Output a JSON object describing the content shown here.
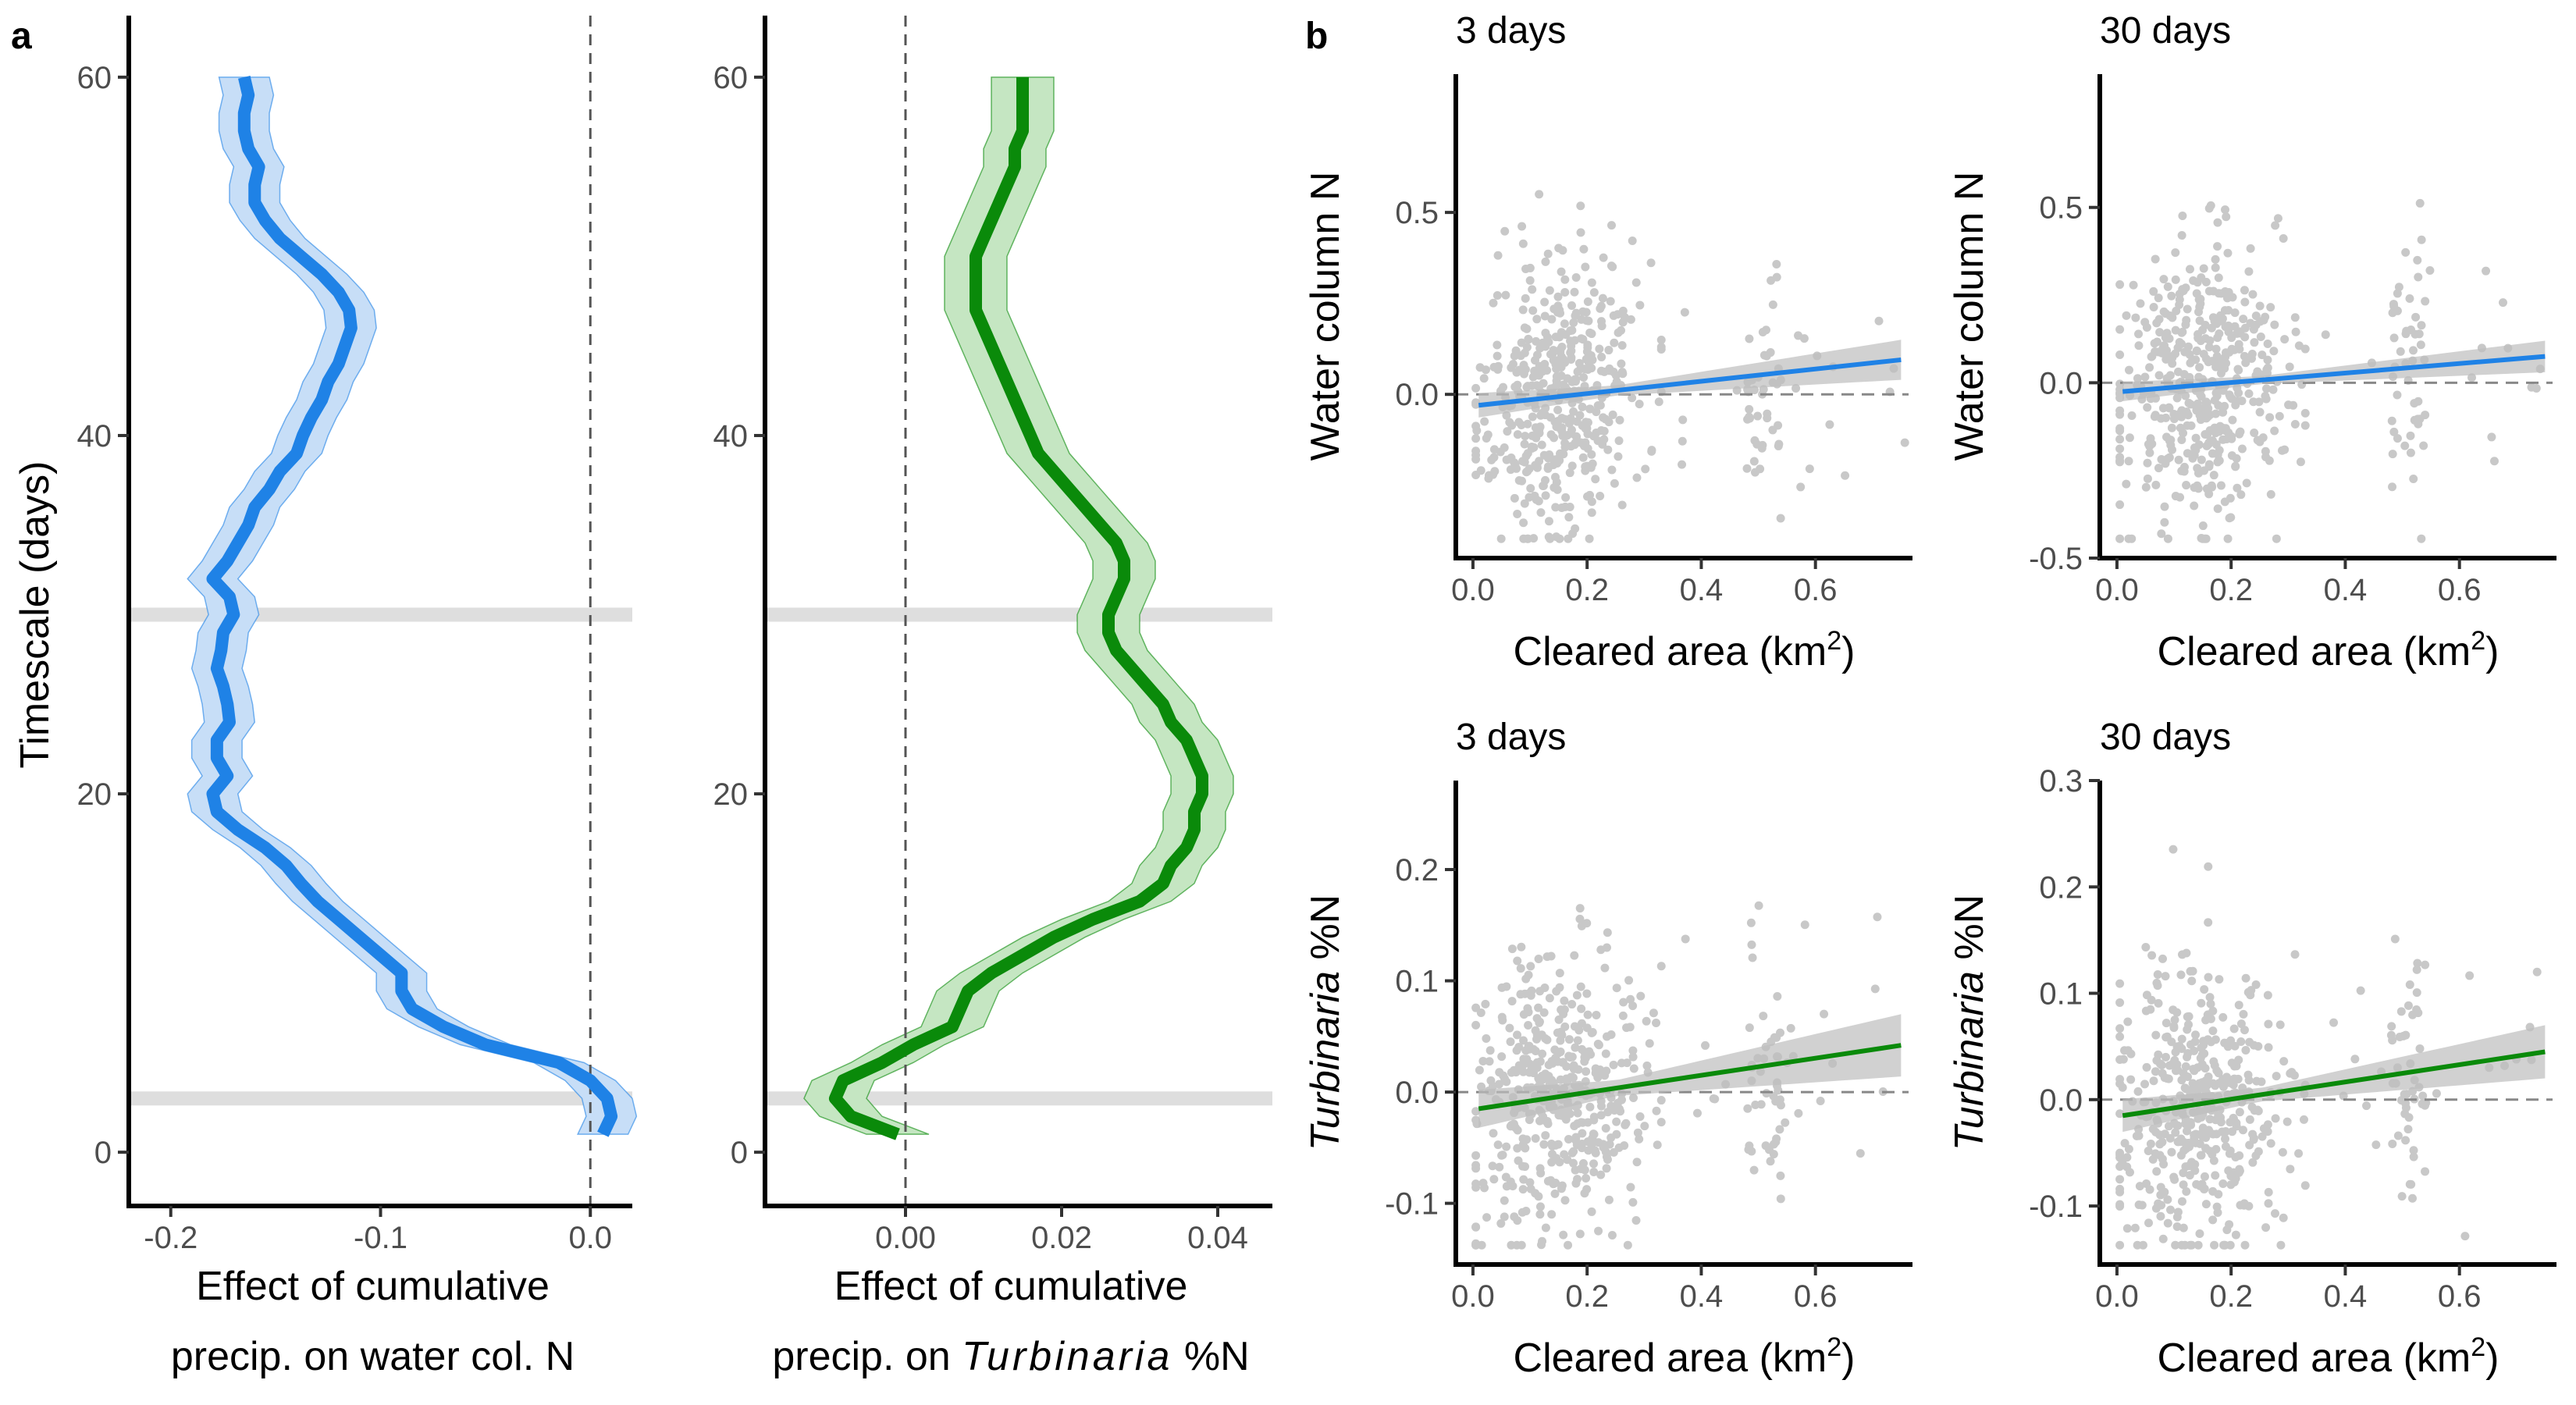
{
  "panel_labels": {
    "a": "a",
    "b": "b"
  },
  "chart_data": [
    {
      "type": "line",
      "orientation": "horizontal-effect",
      "ylabel": "Timescale (days)",
      "xlabel_line1": "Effect of cumulative",
      "xlabel_line2": "precip. on water col. N",
      "xlim": [
        -0.22,
        0.02
      ],
      "ylim": [
        -3,
        63
      ],
      "xticks": [
        {
          "v": -0.2,
          "label": "-0.2"
        },
        {
          "v": -0.1,
          "label": "-0.1"
        },
        {
          "v": 0.0,
          "label": "0.0"
        }
      ],
      "yticks": [
        {
          "v": 0,
          "label": "0"
        },
        {
          "v": 20,
          "label": "20"
        },
        {
          "v": 40,
          "label": "40"
        },
        {
          "v": 60,
          "label": "60"
        }
      ],
      "highlight_days": [
        3,
        30
      ],
      "zero_line": 0,
      "color": "#1f82e6",
      "band_color": "#c7def7",
      "days": [
        1,
        2,
        3,
        4,
        5,
        6,
        7,
        8,
        9,
        10,
        11,
        12,
        13,
        14,
        15,
        16,
        17,
        18,
        19,
        20,
        21,
        22,
        23,
        24,
        25,
        26,
        27,
        28,
        29,
        30,
        31,
        32,
        33,
        34,
        35,
        36,
        37,
        38,
        39,
        40,
        41,
        42,
        43,
        44,
        45,
        46,
        47,
        48,
        49,
        50,
        51,
        52,
        53,
        54,
        55,
        56,
        57,
        58,
        59,
        60
      ],
      "effect": [
        0.006,
        0.01,
        0.008,
        0.0,
        -0.015,
        -0.05,
        -0.07,
        -0.085,
        -0.09,
        -0.09,
        -0.1,
        -0.11,
        -0.12,
        -0.13,
        -0.138,
        -0.145,
        -0.155,
        -0.168,
        -0.178,
        -0.18,
        -0.173,
        -0.178,
        -0.178,
        -0.172,
        -0.173,
        -0.175,
        -0.178,
        -0.176,
        -0.175,
        -0.17,
        -0.172,
        -0.18,
        -0.173,
        -0.168,
        -0.163,
        -0.16,
        -0.153,
        -0.148,
        -0.14,
        -0.137,
        -0.133,
        -0.128,
        -0.125,
        -0.12,
        -0.117,
        -0.114,
        -0.115,
        -0.12,
        -0.128,
        -0.138,
        -0.148,
        -0.155,
        -0.16,
        -0.16,
        -0.158,
        -0.163,
        -0.165,
        -0.165,
        -0.163,
        -0.165
      ],
      "half_width": 0.012
    },
    {
      "type": "line",
      "orientation": "horizontal-effect",
      "ylabel": "",
      "xlabel_line1": "Effect of cumulative",
      "xlabel_line2_pre": "precip. on ",
      "xlabel_line2_italic": "Turbinaria",
      "xlabel_line2_post": " %N",
      "xlim": [
        -0.018,
        0.047
      ],
      "ylim": [
        -3,
        63
      ],
      "xticks": [
        {
          "v": 0.0,
          "label": "0.00"
        },
        {
          "v": 0.02,
          "label": "0.02"
        },
        {
          "v": 0.04,
          "label": "0.04"
        }
      ],
      "yticks": [
        {
          "v": 0,
          "label": "0"
        },
        {
          "v": 20,
          "label": "20"
        },
        {
          "v": 40,
          "label": "40"
        },
        {
          "v": 60,
          "label": "60"
        }
      ],
      "highlight_days": [
        3,
        30
      ],
      "zero_line": 0,
      "color": "#0a8a0a",
      "band_color": "#c5e6c2",
      "days": [
        1,
        2,
        3,
        4,
        5,
        6,
        7,
        8,
        9,
        10,
        11,
        12,
        13,
        14,
        15,
        16,
        17,
        18,
        19,
        20,
        21,
        22,
        23,
        24,
        25,
        26,
        27,
        28,
        29,
        30,
        31,
        32,
        33,
        34,
        35,
        36,
        37,
        38,
        39,
        40,
        41,
        42,
        43,
        44,
        45,
        46,
        47,
        48,
        49,
        50,
        51,
        52,
        53,
        54,
        55,
        56,
        57,
        58,
        59,
        60
      ],
      "effect": [
        -0.001,
        -0.007,
        -0.009,
        -0.008,
        -0.003,
        0.001,
        0.006,
        0.007,
        0.008,
        0.011,
        0.015,
        0.019,
        0.024,
        0.03,
        0.033,
        0.034,
        0.036,
        0.037,
        0.037,
        0.038,
        0.038,
        0.037,
        0.036,
        0.034,
        0.033,
        0.031,
        0.029,
        0.027,
        0.026,
        0.026,
        0.027,
        0.028,
        0.028,
        0.027,
        0.025,
        0.023,
        0.021,
        0.019,
        0.017,
        0.016,
        0.015,
        0.014,
        0.013,
        0.012,
        0.011,
        0.01,
        0.009,
        0.009,
        0.009,
        0.009,
        0.01,
        0.011,
        0.012,
        0.013,
        0.014,
        0.014,
        0.015,
        0.015,
        0.015,
        0.015
      ],
      "half_width": 0.004
    },
    {
      "type": "scatter",
      "title": "3 days",
      "ylabel": "Water column N",
      "xlabel_text": "Cleared area (km",
      "xlabel_sup": "2",
      "xlabel_close": ")",
      "xlim": [
        -0.03,
        0.77
      ],
      "ylim": [
        -0.45,
        0.88
      ],
      "xticks": [
        {
          "v": 0.0,
          "label": "0.0"
        },
        {
          "v": 0.2,
          "label": "0.2"
        },
        {
          "v": 0.4,
          "label": "0.4"
        },
        {
          "v": 0.6,
          "label": "0.6"
        }
      ],
      "yticks": [
        {
          "v": 0.0,
          "label": "0.0"
        },
        {
          "v": 0.5,
          "label": "0.5"
        }
      ],
      "fit": {
        "x": [
          0.01,
          0.75
        ],
        "y": [
          -0.03,
          0.095
        ],
        "se_at_end": 0.055
      },
      "line_color": "#1f82e6",
      "n_points": 520,
      "seed": 11
    },
    {
      "type": "scatter",
      "title": "30 days",
      "ylabel": "Water column N",
      "xlabel_text": "Cleared area (km",
      "xlabel_sup": "2",
      "xlabel_close": ")",
      "xlim": [
        -0.03,
        0.77
      ],
      "ylim": [
        -0.5,
        0.88
      ],
      "xticks": [
        {
          "v": 0.0,
          "label": "0.0"
        },
        {
          "v": 0.2,
          "label": "0.2"
        },
        {
          "v": 0.4,
          "label": "0.4"
        },
        {
          "v": 0.6,
          "label": "0.6"
        }
      ],
      "yticks": [
        {
          "v": -0.5,
          "label": "-0.5"
        },
        {
          "v": 0.0,
          "label": "0.0"
        },
        {
          "v": 0.5,
          "label": "0.5"
        }
      ],
      "fit": {
        "x": [
          0.01,
          0.75
        ],
        "y": [
          -0.025,
          0.075
        ],
        "se_at_end": 0.045
      },
      "line_color": "#1f82e6",
      "n_points": 520,
      "seed": 23
    },
    {
      "type": "scatter",
      "title": "3 days",
      "ylabel_italic": "Turbinaria",
      "ylabel_post": " %N",
      "xlabel_text": "Cleared area (km",
      "xlabel_sup": "2",
      "xlabel_close": ")",
      "xlim": [
        -0.03,
        0.77
      ],
      "ylim": [
        -0.155,
        0.28
      ],
      "xticks": [
        {
          "v": 0.0,
          "label": "0.0"
        },
        {
          "v": 0.2,
          "label": "0.2"
        },
        {
          "v": 0.4,
          "label": "0.4"
        },
        {
          "v": 0.6,
          "label": "0.6"
        }
      ],
      "yticks": [
        {
          "v": -0.1,
          "label": "-0.1"
        },
        {
          "v": 0.0,
          "label": "0.0"
        },
        {
          "v": 0.1,
          "label": "0.1"
        },
        {
          "v": 0.2,
          "label": "0.2"
        }
      ],
      "fit": {
        "x": [
          0.01,
          0.75
        ],
        "y": [
          -0.015,
          0.042
        ],
        "se_at_end": 0.028
      },
      "line_color": "#0a8a0a",
      "n_points": 520,
      "seed": 37
    },
    {
      "type": "scatter",
      "title": "30 days",
      "ylabel_italic": "Turbinaria",
      "ylabel_post": " %N",
      "xlabel_text": "Cleared area (km",
      "xlabel_sup": "2",
      "xlabel_close": ")",
      "xlim": [
        -0.03,
        0.77
      ],
      "ylim": [
        -0.155,
        0.3
      ],
      "xticks": [
        {
          "v": 0.0,
          "label": "0.0"
        },
        {
          "v": 0.2,
          "label": "0.2"
        },
        {
          "v": 0.4,
          "label": "0.4"
        },
        {
          "v": 0.6,
          "label": "0.6"
        }
      ],
      "yticks": [
        {
          "v": -0.1,
          "label": "-0.1"
        },
        {
          "v": 0.0,
          "label": "0.0"
        },
        {
          "v": 0.1,
          "label": "0.1"
        },
        {
          "v": 0.2,
          "label": "0.2"
        },
        {
          "v": 0.3,
          "label": "0.3"
        }
      ],
      "fit": {
        "x": [
          0.01,
          0.75
        ],
        "y": [
          -0.015,
          0.045
        ],
        "se_at_end": 0.025
      },
      "line_color": "#0a8a0a",
      "n_points": 520,
      "seed": 51
    }
  ]
}
